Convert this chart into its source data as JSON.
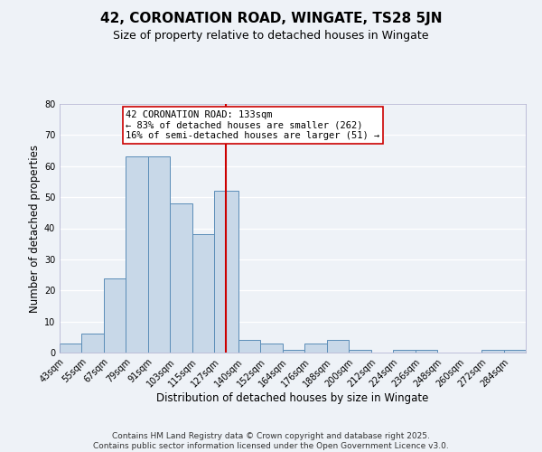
{
  "title": "42, CORONATION ROAD, WINGATE, TS28 5JN",
  "subtitle": "Size of property relative to detached houses in Wingate",
  "xlabel": "Distribution of detached houses by size in Wingate",
  "ylabel": "Number of detached properties",
  "bin_edges": [
    43,
    55,
    67,
    79,
    91,
    103,
    115,
    127,
    140,
    152,
    164,
    176,
    188,
    200,
    212,
    224,
    236,
    248,
    260,
    272,
    284,
    296
  ],
  "bin_labels": [
    "43sqm",
    "55sqm",
    "67sqm",
    "79sqm",
    "91sqm",
    "103sqm",
    "115sqm",
    "127sqm",
    "140sqm",
    "152sqm",
    "164sqm",
    "176sqm",
    "188sqm",
    "200sqm",
    "212sqm",
    "224sqm",
    "236sqm",
    "248sqm",
    "260sqm",
    "272sqm",
    "284sqm"
  ],
  "bar_heights": [
    3,
    6,
    24,
    63,
    63,
    48,
    38,
    52,
    4,
    3,
    1,
    3,
    4,
    1,
    0,
    1,
    1,
    0,
    0,
    1,
    1
  ],
  "bar_color": "#c8d8e8",
  "bar_edge_color": "#5b8db8",
  "vline_x": 133,
  "vline_color": "#cc0000",
  "ylim": [
    0,
    80
  ],
  "yticks": [
    0,
    10,
    20,
    30,
    40,
    50,
    60,
    70,
    80
  ],
  "annotation_title": "42 CORONATION ROAD: 133sqm",
  "annotation_line1": "← 83% of detached houses are smaller (262)",
  "annotation_line2": "16% of semi-detached houses are larger (51) →",
  "annotation_box_color": "#ffffff",
  "annotation_box_edge": "#cc0000",
  "footer1": "Contains HM Land Registry data © Crown copyright and database right 2025.",
  "footer2": "Contains public sector information licensed under the Open Government Licence v3.0.",
  "bg_color": "#eef2f7",
  "grid_color": "#ffffff",
  "title_fontsize": 11,
  "subtitle_fontsize": 9,
  "axis_label_fontsize": 8.5,
  "tick_fontsize": 7,
  "annotation_fontsize": 7.5,
  "footer_fontsize": 6.5
}
